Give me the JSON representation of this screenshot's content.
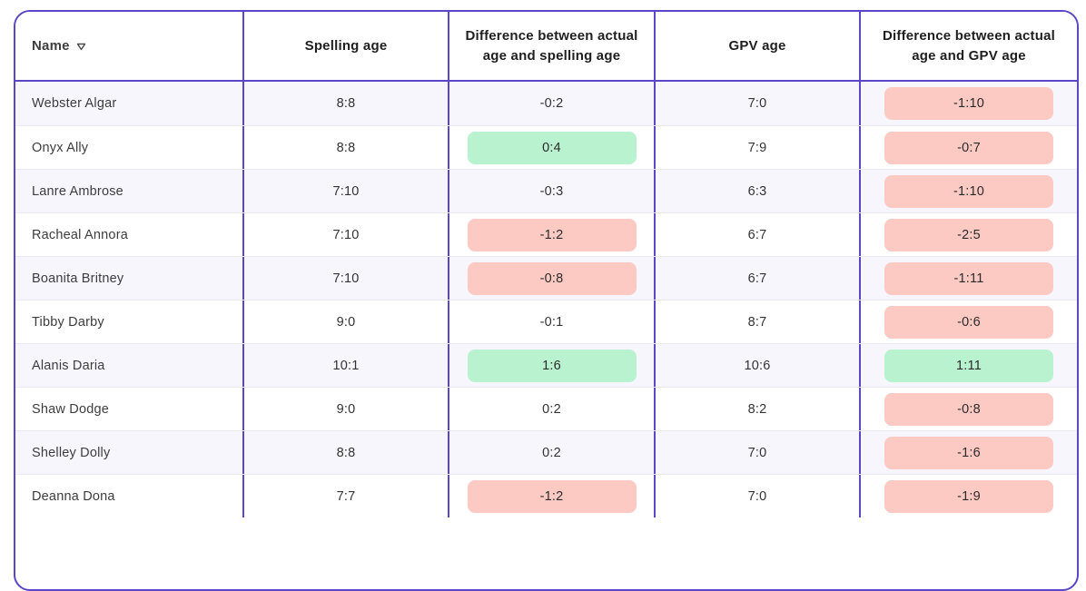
{
  "table": {
    "columns": [
      {
        "key": "name",
        "label": "Name",
        "sortable": true,
        "sort_icon": "triangle-down-outline"
      },
      {
        "key": "spelling_age",
        "label": "Spelling age"
      },
      {
        "key": "diff_spelling",
        "label": "Difference between actual age and spelling age"
      },
      {
        "key": "gpv_age",
        "label": "GPV age"
      },
      {
        "key": "diff_gpv",
        "label": "Difference between actual age and GPV age"
      }
    ],
    "rows": [
      {
        "name": "Webster Algar",
        "spelling_age": "8:8",
        "diff_spelling": "-0:2",
        "diff_spelling_badge": "none",
        "gpv_age": "7:0",
        "diff_gpv": "-1:10",
        "diff_gpv_badge": "negative"
      },
      {
        "name": "Onyx Ally",
        "spelling_age": "8:8",
        "diff_spelling": "0:4",
        "diff_spelling_badge": "positive",
        "gpv_age": "7:9",
        "diff_gpv": "-0:7",
        "diff_gpv_badge": "negative"
      },
      {
        "name": "Lanre Ambrose",
        "spelling_age": "7:10",
        "diff_spelling": "-0:3",
        "diff_spelling_badge": "none",
        "gpv_age": "6:3",
        "diff_gpv": "-1:10",
        "diff_gpv_badge": "negative"
      },
      {
        "name": "Racheal Annora",
        "spelling_age": "7:10",
        "diff_spelling": "-1:2",
        "diff_spelling_badge": "negative",
        "gpv_age": "6:7",
        "diff_gpv": "-2:5",
        "diff_gpv_badge": "negative"
      },
      {
        "name": "Boanita Britney",
        "spelling_age": "7:10",
        "diff_spelling": "-0:8",
        "diff_spelling_badge": "negative",
        "gpv_age": "6:7",
        "diff_gpv": "-1:11",
        "diff_gpv_badge": "negative"
      },
      {
        "name": "Tibby Darby",
        "spelling_age": "9:0",
        "diff_spelling": "-0:1",
        "diff_spelling_badge": "none",
        "gpv_age": "8:7",
        "diff_gpv": "-0:6",
        "diff_gpv_badge": "negative"
      },
      {
        "name": "Alanis Daria",
        "spelling_age": "10:1",
        "diff_spelling": "1:6",
        "diff_spelling_badge": "positive",
        "gpv_age": "10:6",
        "diff_gpv": "1:11",
        "diff_gpv_badge": "positive"
      },
      {
        "name": "Shaw Dodge",
        "spelling_age": "9:0",
        "diff_spelling": "0:2",
        "diff_spelling_badge": "none",
        "gpv_age": "8:2",
        "diff_gpv": "-0:8",
        "diff_gpv_badge": "negative"
      },
      {
        "name": "Shelley Dolly",
        "spelling_age": "8:8",
        "diff_spelling": "0:2",
        "diff_spelling_badge": "none",
        "gpv_age": "7:0",
        "diff_gpv": "-1:6",
        "diff_gpv_badge": "negative"
      },
      {
        "name": "Deanna Dona",
        "spelling_age": "7:7",
        "diff_spelling": "-1:2",
        "diff_spelling_badge": "negative",
        "gpv_age": "7:0",
        "diff_gpv": "-1:9",
        "diff_gpv_badge": "negative"
      }
    ]
  },
  "colors": {
    "accent_purple": "#5a46c7",
    "row_alt_bg": "#f7f6fd",
    "row_bg": "#ffffff",
    "row_divider": "#edeaf7",
    "badge_negative_bg": "#fdc9c3",
    "badge_positive_bg": "#b9f2cf",
    "header_text": "#1f1f1f",
    "cell_text": "#333333"
  }
}
